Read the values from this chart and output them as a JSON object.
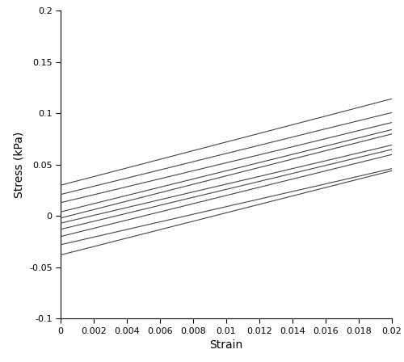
{
  "title": "",
  "xlabel": "Strain",
  "ylabel": "Stress (kPa)",
  "xlim": [
    0,
    0.02
  ],
  "ylim": [
    -0.1,
    0.2
  ],
  "xticks": [
    0,
    0.002,
    0.004,
    0.006,
    0.008,
    0.01,
    0.012,
    0.014,
    0.016,
    0.018,
    0.02
  ],
  "yticks": [
    -0.1,
    -0.05,
    0,
    0.05,
    0.1,
    0.15,
    0.2
  ],
  "line_color": "#444444",
  "line_width": 0.8,
  "n_points": 300,
  "tests": [
    {
      "intercept": 0.03,
      "slope": 4.2,
      "noise_seed": 1,
      "noise_amp": 0.0015
    },
    {
      "intercept": 0.021,
      "slope": 4.0,
      "noise_seed": 2,
      "noise_amp": 0.0015
    },
    {
      "intercept": 0.013,
      "slope": 3.9,
      "noise_seed": 3,
      "noise_amp": 0.0015
    },
    {
      "intercept": 0.004,
      "slope": 4.0,
      "noise_seed": 4,
      "noise_amp": 0.0015
    },
    {
      "intercept": -0.002,
      "slope": 4.1,
      "noise_seed": 5,
      "noise_amp": 0.0015
    },
    {
      "intercept": -0.007,
      "slope": 3.8,
      "noise_seed": 6,
      "noise_amp": 0.0015
    },
    {
      "intercept": -0.013,
      "slope": 3.9,
      "noise_seed": 7,
      "noise_amp": 0.0015
    },
    {
      "intercept": -0.02,
      "slope": 4.0,
      "noise_seed": 8,
      "noise_amp": 0.0015
    },
    {
      "intercept": -0.028,
      "slope": 3.7,
      "noise_seed": 9,
      "noise_amp": 0.0015
    },
    {
      "intercept": -0.038,
      "slope": 4.1,
      "noise_seed": 10,
      "noise_amp": 0.0015
    }
  ],
  "background_color": "#ffffff",
  "tick_fontsize": 8,
  "label_fontsize": 10,
  "figsize": [
    5.0,
    4.48
  ],
  "dpi": 100
}
